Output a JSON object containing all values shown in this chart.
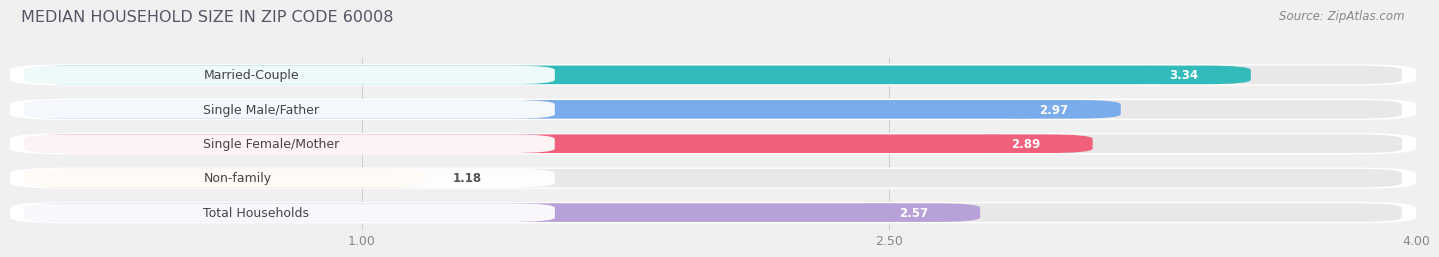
{
  "title": "MEDIAN HOUSEHOLD SIZE IN ZIP CODE 60008",
  "source": "Source: ZipAtlas.com",
  "categories": [
    "Married-Couple",
    "Single Male/Father",
    "Single Female/Mother",
    "Non-family",
    "Total Households"
  ],
  "values": [
    3.34,
    2.97,
    2.89,
    1.18,
    2.57
  ],
  "bar_colors": [
    "#33bbbb",
    "#7aabea",
    "#f0607a",
    "#f5c89a",
    "#b8a0d8"
  ],
  "track_color": "#e8e8e8",
  "row_bg_color": "#ffffff",
  "xlim": [
    0,
    4.0
  ],
  "xticks": [
    1.0,
    2.5,
    4.0
  ],
  "background_color": "#f0f0f0",
  "title_fontsize": 11.5,
  "label_fontsize": 9,
  "value_fontsize": 8.5,
  "source_fontsize": 8.5
}
